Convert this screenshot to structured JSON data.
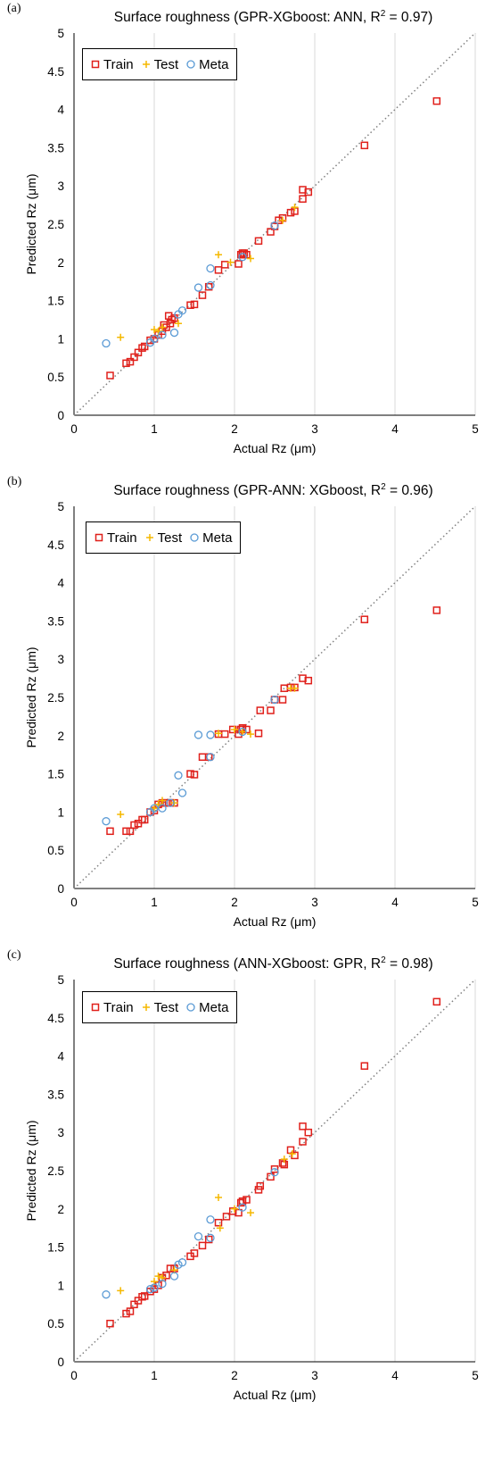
{
  "chart_data": [
    {
      "type": "scatter",
      "panel_label": "(a)",
      "title": "Surface roughness (GPR-XGboost: ANN, R",
      "title_sup": "2",
      "title_end": " = 0.97)",
      "xlabel": "Actual Rz (μm)",
      "ylabel": "Predicted Rz (μm)",
      "xlim": [
        0,
        5
      ],
      "ylim": [
        0,
        5
      ],
      "xticks": [
        "0",
        "1",
        "2",
        "3",
        "4",
        "5"
      ],
      "yticks": [
        "0",
        "0.5",
        "1",
        "1.5",
        "2",
        "2.5",
        "3",
        "3.5",
        "4",
        "4.5",
        "5"
      ],
      "grid": "vertical",
      "legend_position": "top-left",
      "series": [
        {
          "name": "Train",
          "marker": "square",
          "color": "#e0201b",
          "points": [
            [
              0.45,
              0.52
            ],
            [
              0.65,
              0.68
            ],
            [
              0.7,
              0.7
            ],
            [
              0.75,
              0.76
            ],
            [
              0.8,
              0.82
            ],
            [
              0.85,
              0.88
            ],
            [
              0.88,
              0.9
            ],
            [
              0.95,
              0.98
            ],
            [
              1.0,
              1.0
            ],
            [
              1.05,
              1.05
            ],
            [
              1.1,
              1.1
            ],
            [
              1.12,
              1.18
            ],
            [
              1.15,
              1.15
            ],
            [
              1.18,
              1.3
            ],
            [
              1.2,
              1.2
            ],
            [
              1.22,
              1.25
            ],
            [
              1.25,
              1.27
            ],
            [
              1.45,
              1.44
            ],
            [
              1.5,
              1.45
            ],
            [
              1.6,
              1.57
            ],
            [
              1.68,
              1.68
            ],
            [
              1.8,
              1.9
            ],
            [
              1.88,
              1.97
            ],
            [
              2.05,
              1.98
            ],
            [
              2.08,
              2.1
            ],
            [
              2.1,
              2.12
            ],
            [
              2.12,
              2.12
            ],
            [
              2.15,
              2.1
            ],
            [
              2.3,
              2.28
            ],
            [
              2.45,
              2.4
            ],
            [
              2.5,
              2.47
            ],
            [
              2.55,
              2.55
            ],
            [
              2.6,
              2.58
            ],
            [
              2.7,
              2.65
            ],
            [
              2.75,
              2.67
            ],
            [
              2.85,
              2.95
            ],
            [
              2.85,
              2.83
            ],
            [
              2.92,
              2.92
            ],
            [
              3.62,
              3.53
            ],
            [
              4.52,
              4.11
            ]
          ]
        },
        {
          "name": "Test",
          "marker": "plus",
          "color": "#f5b800",
          "points": [
            [
              0.58,
              1.02
            ],
            [
              1.0,
              1.12
            ],
            [
              1.05,
              1.1
            ],
            [
              1.1,
              1.15
            ],
            [
              1.3,
              1.2
            ],
            [
              1.8,
              2.1
            ],
            [
              1.95,
              2.0
            ],
            [
              2.2,
              2.05
            ],
            [
              2.6,
              2.55
            ],
            [
              2.75,
              2.72
            ]
          ]
        },
        {
          "name": "Meta",
          "marker": "circle",
          "color": "#5b9bd5",
          "points": [
            [
              0.4,
              0.94
            ],
            [
              0.95,
              0.95
            ],
            [
              1.0,
              1.0
            ],
            [
              1.1,
              1.05
            ],
            [
              1.25,
              1.08
            ],
            [
              1.3,
              1.32
            ],
            [
              1.35,
              1.37
            ],
            [
              1.55,
              1.67
            ],
            [
              1.7,
              1.92
            ],
            [
              1.7,
              1.7
            ],
            [
              2.1,
              2.07
            ],
            [
              2.5,
              2.48
            ]
          ]
        }
      ]
    },
    {
      "type": "scatter",
      "panel_label": "(b)",
      "title": "Surface roughness (GPR-ANN: XGboost, R",
      "title_sup": "2",
      "title_end": " = 0.96)",
      "xlabel": "Actual Rz (μm)",
      "ylabel": "Predicted Rz (μm)",
      "xlim": [
        0,
        5
      ],
      "ylim": [
        0,
        5
      ],
      "xticks": [
        "0",
        "1",
        "2",
        "3",
        "4",
        "5"
      ],
      "yticks": [
        "0",
        "0.5",
        "1",
        "1.5",
        "2",
        "2.5",
        "3",
        "3.5",
        "4",
        "4.5",
        "5"
      ],
      "grid": "vertical",
      "legend_position": "top-left",
      "series": [
        {
          "name": "Train",
          "marker": "square",
          "color": "#e0201b",
          "points": [
            [
              0.45,
              0.75
            ],
            [
              0.65,
              0.75
            ],
            [
              0.7,
              0.75
            ],
            [
              0.75,
              0.83
            ],
            [
              0.8,
              0.85
            ],
            [
              0.85,
              0.9
            ],
            [
              0.88,
              0.9
            ],
            [
              0.95,
              1.0
            ],
            [
              1.0,
              1.02
            ],
            [
              1.05,
              1.1
            ],
            [
              1.1,
              1.12
            ],
            [
              1.15,
              1.12
            ],
            [
              1.2,
              1.12
            ],
            [
              1.25,
              1.12
            ],
            [
              1.45,
              1.5
            ],
            [
              1.5,
              1.49
            ],
            [
              1.6,
              1.72
            ],
            [
              1.68,
              1.72
            ],
            [
              1.8,
              2.02
            ],
            [
              1.88,
              2.02
            ],
            [
              1.98,
              2.08
            ],
            [
              2.05,
              2.02
            ],
            [
              2.08,
              2.08
            ],
            [
              2.1,
              2.1
            ],
            [
              2.15,
              2.08
            ],
            [
              2.3,
              2.03
            ],
            [
              2.32,
              2.33
            ],
            [
              2.45,
              2.33
            ],
            [
              2.5,
              2.47
            ],
            [
              2.6,
              2.47
            ],
            [
              2.62,
              2.62
            ],
            [
              2.7,
              2.63
            ],
            [
              2.75,
              2.63
            ],
            [
              2.85,
              2.75
            ],
            [
              2.92,
              2.72
            ],
            [
              3.62,
              3.52
            ],
            [
              4.52,
              3.64
            ]
          ]
        },
        {
          "name": "Test",
          "marker": "plus",
          "color": "#f5b800",
          "points": [
            [
              0.58,
              0.97
            ],
            [
              1.0,
              1.05
            ],
            [
              1.05,
              1.1
            ],
            [
              1.1,
              1.15
            ],
            [
              1.25,
              1.12
            ],
            [
              1.8,
              2.03
            ],
            [
              2.0,
              2.08
            ],
            [
              2.1,
              2.05
            ],
            [
              2.2,
              2.02
            ],
            [
              2.7,
              2.62
            ],
            [
              2.75,
              2.62
            ]
          ]
        },
        {
          "name": "Meta",
          "marker": "circle",
          "color": "#5b9bd5",
          "points": [
            [
              0.4,
              0.88
            ],
            [
              0.95,
              1.0
            ],
            [
              1.0,
              1.05
            ],
            [
              1.1,
              1.05
            ],
            [
              1.2,
              1.12
            ],
            [
              1.3,
              1.48
            ],
            [
              1.35,
              1.25
            ],
            [
              1.55,
              2.01
            ],
            [
              1.7,
              2.01
            ],
            [
              1.7,
              1.72
            ],
            [
              2.1,
              2.05
            ],
            [
              2.5,
              2.47
            ]
          ]
        }
      ]
    },
    {
      "type": "scatter",
      "panel_label": "(c)",
      "title": "Surface roughness (ANN-XGboost: GPR, R",
      "title_sup": "2",
      "title_end": " = 0.98)",
      "xlabel": "Actual Rz (μm)",
      "ylabel": "Predicted Rz (μm)",
      "xlim": [
        0,
        5
      ],
      "ylim": [
        0,
        5
      ],
      "xticks": [
        "0",
        "1",
        "2",
        "3",
        "4",
        "5"
      ],
      "yticks": [
        "0",
        "0.5",
        "1",
        "1.5",
        "2",
        "2.5",
        "3",
        "3.5",
        "4",
        "4.5",
        "5"
      ],
      "grid": "vertical",
      "legend_position": "top-left",
      "series": [
        {
          "name": "Train",
          "marker": "square",
          "color": "#e0201b",
          "points": [
            [
              0.45,
              0.5
            ],
            [
              0.65,
              0.63
            ],
            [
              0.7,
              0.66
            ],
            [
              0.75,
              0.75
            ],
            [
              0.8,
              0.8
            ],
            [
              0.85,
              0.85
            ],
            [
              0.88,
              0.86
            ],
            [
              0.95,
              0.92
            ],
            [
              1.0,
              0.95
            ],
            [
              1.05,
              1.0
            ],
            [
              1.1,
              1.1
            ],
            [
              1.15,
              1.13
            ],
            [
              1.2,
              1.22
            ],
            [
              1.25,
              1.22
            ],
            [
              1.45,
              1.38
            ],
            [
              1.5,
              1.42
            ],
            [
              1.6,
              1.52
            ],
            [
              1.68,
              1.6
            ],
            [
              1.8,
              1.82
            ],
            [
              1.9,
              1.9
            ],
            [
              1.98,
              1.97
            ],
            [
              2.05,
              1.95
            ],
            [
              2.08,
              2.08
            ],
            [
              2.1,
              2.1
            ],
            [
              2.15,
              2.12
            ],
            [
              2.3,
              2.25
            ],
            [
              2.32,
              2.3
            ],
            [
              2.45,
              2.42
            ],
            [
              2.5,
              2.52
            ],
            [
              2.6,
              2.6
            ],
            [
              2.62,
              2.58
            ],
            [
              2.7,
              2.77
            ],
            [
              2.75,
              2.7
            ],
            [
              2.85,
              3.08
            ],
            [
              2.85,
              2.88
            ],
            [
              2.92,
              3.0
            ],
            [
              3.62,
              3.87
            ],
            [
              4.52,
              4.71
            ]
          ]
        },
        {
          "name": "Test",
          "marker": "plus",
          "color": "#f5b800",
          "points": [
            [
              0.58,
              0.93
            ],
            [
              1.0,
              1.05
            ],
            [
              1.05,
              1.12
            ],
            [
              1.1,
              1.1
            ],
            [
              1.25,
              1.2
            ],
            [
              1.8,
              2.15
            ],
            [
              1.82,
              1.75
            ],
            [
              2.0,
              2.0
            ],
            [
              2.2,
              1.95
            ],
            [
              2.62,
              2.65
            ],
            [
              2.72,
              2.72
            ]
          ]
        },
        {
          "name": "Meta",
          "marker": "circle",
          "color": "#5b9bd5",
          "points": [
            [
              0.4,
              0.88
            ],
            [
              0.95,
              0.95
            ],
            [
              1.0,
              0.97
            ],
            [
              1.1,
              1.02
            ],
            [
              1.25,
              1.12
            ],
            [
              1.3,
              1.27
            ],
            [
              1.35,
              1.3
            ],
            [
              1.55,
              1.64
            ],
            [
              1.7,
              1.86
            ],
            [
              1.7,
              1.62
            ],
            [
              2.1,
              2.02
            ],
            [
              2.5,
              2.48
            ]
          ]
        }
      ]
    }
  ]
}
